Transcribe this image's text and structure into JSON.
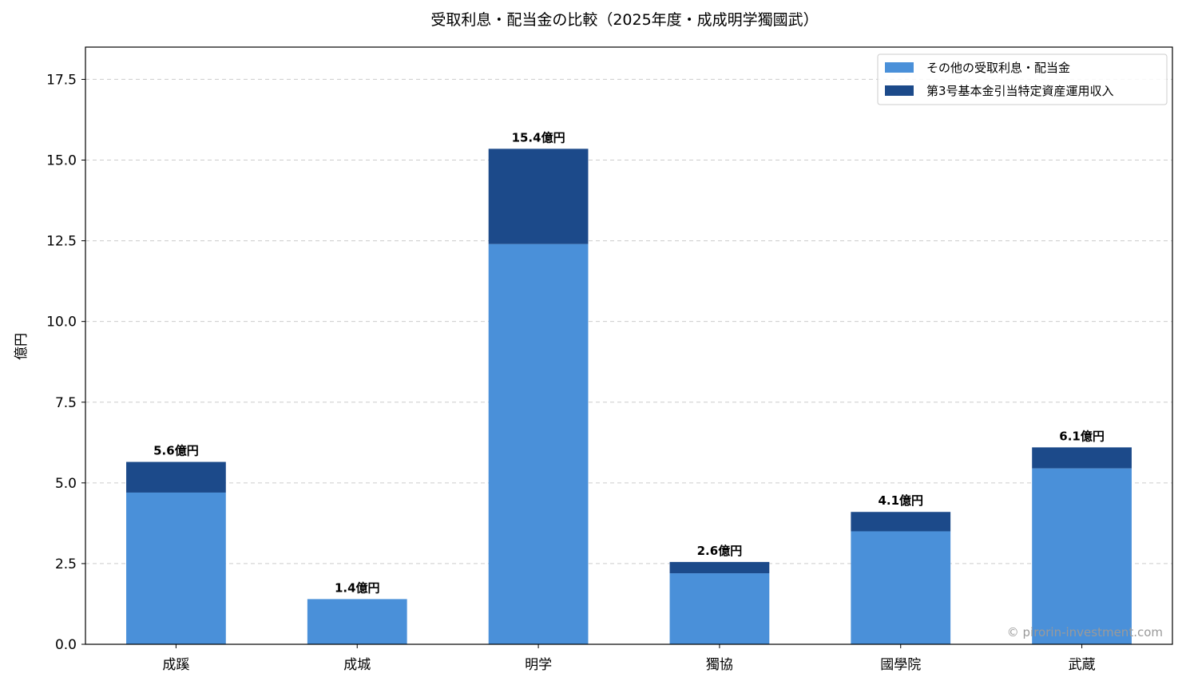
{
  "chart_data": {
    "type": "bar",
    "stacked": true,
    "title": "受取利息・配当金の比較（2025年度・成成明学獨國武）",
    "xlabel": "",
    "ylabel": "億円",
    "ylim": [
      0,
      18.5
    ],
    "yticks": [
      "0.0",
      "2.5",
      "5.0",
      "7.5",
      "10.0",
      "12.5",
      "15.0",
      "17.5"
    ],
    "grid": "horizontal-dashed",
    "legend_position": "top-right",
    "categories": [
      "成蹊",
      "成城",
      "明学",
      "獨協",
      "國學院",
      "武蔵"
    ],
    "series": [
      {
        "name": "その他の受取利息・配当金",
        "color": "#4a90d9",
        "values": [
          4.7,
          1.4,
          12.4,
          2.2,
          3.5,
          5.45
        ]
      },
      {
        "name": "第3号基本金引当特定資産運用収入",
        "color": "#1c4a8a",
        "values": [
          0.95,
          0.0,
          2.95,
          0.35,
          0.6,
          0.65
        ]
      }
    ],
    "total_labels": [
      "5.6億円",
      "1.4億円",
      "15.4億円",
      "2.6億円",
      "4.1億円",
      "6.1億円"
    ]
  },
  "watermark": "© pirorin-investment.com"
}
